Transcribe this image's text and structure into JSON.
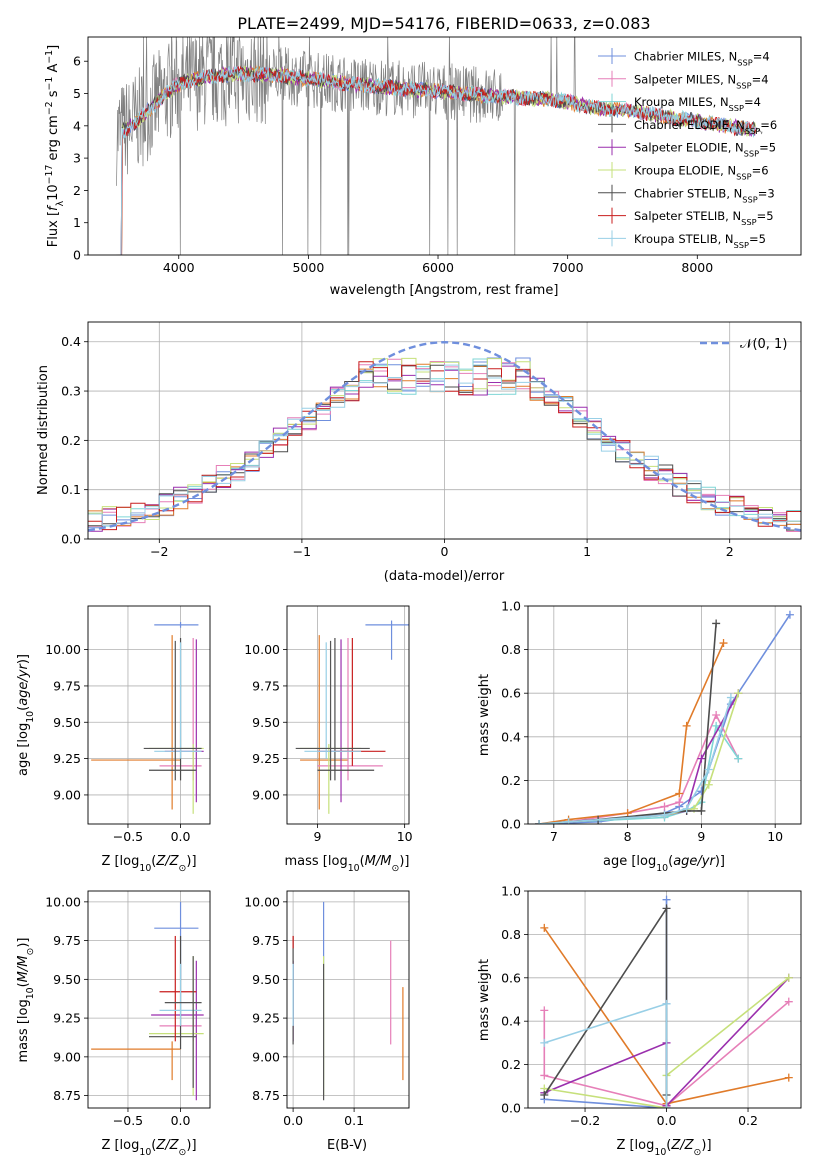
{
  "figure": {
    "title": "PLATE=2499, MJD=54176, FIBERID=0633, z=0.083"
  },
  "colors": {
    "Chabrier MILES": "#6f8fdd",
    "Salpeter MILES": "#e67fb8",
    "Kroupa MILES": "#7fd6d6",
    "Chabrier ELODIE": "#555555",
    "Salpeter ELODIE": "#9a2fad",
    "Kroupa ELODIE": "#c6e07b",
    "Chabrier STELIB": "#4d4d4d",
    "Salpeter STELIB": "#c81e1e",
    "Kroupa STELIB": "#98cfe6",
    "orange": "#e07b2a",
    "data": "#808080"
  },
  "chart_data": [
    {
      "id": "spectrum",
      "type": "line",
      "xlabel": "wavelength [Angstrom, rest frame]",
      "ylabel": "Flux [f_λ10^-17 erg cm^-2 s^-1 A^-1]",
      "xlim": [
        3300,
        8800
      ],
      "ylim": [
        0,
        6.75
      ],
      "xticks": [
        4000,
        5000,
        6000,
        7000,
        8000
      ],
      "yticks": [
        0,
        1,
        2,
        3,
        4,
        5,
        6
      ],
      "grid": false,
      "legend_position": "right",
      "legend": [
        {
          "label": "Chabrier MILES, N_SSP=4",
          "color": "#6f8fdd"
        },
        {
          "label": "Salpeter MILES, N_SSP=4",
          "color": "#e67fb8"
        },
        {
          "label": "Kroupa MILES, N_SSP=4",
          "color": "#7fd6d6"
        },
        {
          "label": "Chabrier ELODIE, N_SSP=6",
          "color": "#555555"
        },
        {
          "label": "Salpeter ELODIE, N_SSP=5",
          "color": "#9a2fad"
        },
        {
          "label": "Kroupa ELODIE, N_SSP=6",
          "color": "#c6e07b"
        },
        {
          "label": "Chabrier STELIB, N_SSP=3",
          "color": "#4d4d4d"
        },
        {
          "label": "Salpeter STELIB, N_SSP=5",
          "color": "#c81e1e"
        },
        {
          "label": "Kroupa STELIB, N_SSP=5",
          "color": "#98cfe6"
        }
      ],
      "continuum": {
        "x": [
          3500,
          3600,
          3750,
          3900,
          4000,
          4200,
          4400,
          4600,
          4800,
          5000,
          5300,
          5600,
          5900,
          6200,
          6500,
          6800,
          7000,
          7200,
          7400,
          7600,
          7800,
          8000,
          8200,
          8500
        ],
        "y": [
          3.7,
          3.9,
          4.4,
          5.0,
          5.3,
          5.5,
          5.6,
          5.6,
          5.55,
          5.45,
          5.3,
          5.2,
          5.1,
          5.0,
          4.9,
          4.85,
          4.75,
          4.55,
          4.5,
          4.4,
          4.25,
          4.15,
          4.0,
          3.85
        ]
      }
    },
    {
      "id": "residuals",
      "type": "line",
      "xlabel": "(data-model)/error",
      "ylabel": "Normed distribution",
      "xlim": [
        -2.5,
        2.5
      ],
      "ylim": [
        0,
        0.44
      ],
      "xticks": [
        -2,
        -1,
        0,
        1,
        2
      ],
      "yticks": [
        0.0,
        0.1,
        0.2,
        0.3,
        0.4
      ],
      "grid": true,
      "legend_position": "top-right",
      "legend": [
        {
          "label": "𝒩(0, 1)",
          "color": "#6f8fdd",
          "dashed": true
        }
      ],
      "bin_width": 0.1
    },
    {
      "id": "age-Z",
      "type": "scatter",
      "xlabel": "Z [log10(Z/Z⊙)]",
      "ylabel": "age [log10(age/yr)]",
      "xlim": [
        -0.88,
        0.28
      ],
      "ylim": [
        8.8,
        10.3
      ],
      "xticks": [
        -0.5,
        0.0
      ],
      "yticks": [
        9.0,
        9.25,
        9.5,
        9.75,
        10.0
      ],
      "grid": true
    },
    {
      "id": "age-mass",
      "type": "scatter",
      "xlabel": "mass [log10(M/M⊙)]",
      "ylabel": "",
      "xlim": [
        8.65,
        10.05
      ],
      "ylim": [
        8.8,
        10.3
      ],
      "xticks": [
        9,
        10
      ],
      "yticks": [
        9.0,
        9.25,
        9.5,
        9.75,
        10.0
      ],
      "grid": true
    },
    {
      "id": "weight-age",
      "type": "line",
      "xlabel": "age [log10(age/yr)]",
      "ylabel": "mass weight",
      "xlim": [
        6.65,
        10.35
      ],
      "ylim": [
        0,
        1.0
      ],
      "xticks": [
        7,
        8,
        9,
        10
      ],
      "yticks": [
        0.0,
        0.2,
        0.4,
        0.6,
        0.8,
        1.0
      ],
      "grid": true,
      "series": [
        {
          "color": "#6f8fdd",
          "x": [
            6.8,
            7.6,
            8.5,
            8.7,
            9.0,
            9.4,
            10.2
          ],
          "y": [
            0.0,
            0.01,
            0.05,
            0.08,
            0.15,
            0.55,
            0.96
          ]
        },
        {
          "color": "#e67fb8",
          "x": [
            6.8,
            7.2,
            8.0,
            8.5,
            8.7,
            9.2,
            9.5
          ],
          "y": [
            0.0,
            0.01,
            0.05,
            0.08,
            0.1,
            0.5,
            0.3
          ]
        },
        {
          "color": "#7fd6d6",
          "x": [
            6.8,
            7.2,
            8.5,
            8.8,
            9.0,
            9.2,
            9.5
          ],
          "y": [
            0.0,
            0.01,
            0.03,
            0.06,
            0.1,
            0.45,
            0.3
          ]
        },
        {
          "color": "#e07b2a",
          "x": [
            6.8,
            7.2,
            8.0,
            8.7,
            8.8,
            9.3
          ],
          "y": [
            0.0,
            0.02,
            0.05,
            0.14,
            0.45,
            0.83
          ]
        },
        {
          "color": "#9a2fad",
          "x": [
            6.8,
            7.2,
            8.5,
            8.8,
            9.0,
            9.5
          ],
          "y": [
            0.0,
            0.01,
            0.04,
            0.06,
            0.3,
            0.6
          ]
        },
        {
          "color": "#c6e07b",
          "x": [
            6.8,
            7.2,
            8.5,
            8.9,
            9.1,
            9.5
          ],
          "y": [
            0.0,
            0.01,
            0.04,
            0.07,
            0.18,
            0.6
          ]
        },
        {
          "color": "#4d4d4d",
          "x": [
            6.8,
            7.6,
            8.8,
            9.0,
            9.2
          ],
          "y": [
            0.0,
            0.02,
            0.06,
            0.06,
            0.92
          ]
        },
        {
          "color": "#98cfe6",
          "x": [
            6.8,
            7.2,
            8.5,
            8.8,
            9.1,
            9.4
          ],
          "y": [
            0.0,
            0.01,
            0.04,
            0.07,
            0.25,
            0.58
          ]
        }
      ]
    },
    {
      "id": "mass-Z",
      "type": "scatter",
      "xlabel": "Z [log10(Z/Z⊙)]",
      "ylabel": "mass [log10(M/M⊙)]",
      "xlim": [
        -0.88,
        0.28
      ],
      "ylim": [
        8.67,
        10.07
      ],
      "xticks": [
        -0.5,
        0.0
      ],
      "yticks": [
        8.75,
        9.0,
        9.25,
        9.5,
        9.75,
        10.0
      ],
      "grid": true
    },
    {
      "id": "mass-EBV",
      "type": "scatter",
      "xlabel": "E(B-V)",
      "ylabel": "",
      "xlim": [
        -0.01,
        0.19
      ],
      "ylim": [
        8.67,
        10.07
      ],
      "xticks": [
        0.0,
        0.1
      ],
      "yticks": [
        8.75,
        9.0,
        9.25,
        9.5,
        9.75,
        10.0
      ],
      "grid": true
    },
    {
      "id": "weight-Z",
      "type": "line",
      "xlabel": "Z [log10(Z/Z⊙)]",
      "ylabel": "mass weight",
      "xlim": [
        -0.34,
        0.33
      ],
      "ylim": [
        0,
        1.0
      ],
      "xticks": [
        -0.2,
        0.0,
        0.2
      ],
      "yticks": [
        0.0,
        0.2,
        0.4,
        0.6,
        0.8,
        1.0
      ],
      "grid": true,
      "series": [
        {
          "color": "#6f8fdd",
          "x": [
            -0.3,
            0.0,
            0.0,
            0.0
          ],
          "y": [
            0.04,
            0.0,
            0.48,
            0.96
          ]
        },
        {
          "color": "#e67fb8",
          "x": [
            -0.3,
            -0.3,
            0.0,
            0.3
          ],
          "y": [
            0.45,
            0.15,
            0.01,
            0.49
          ]
        },
        {
          "color": "#e07b2a",
          "x": [
            -0.3,
            0.0,
            0.3
          ],
          "y": [
            0.83,
            0.02,
            0.14
          ]
        },
        {
          "color": "#9a2fad",
          "x": [
            -0.3,
            0.0,
            0.0,
            0.3
          ],
          "y": [
            0.07,
            0.3,
            0.01,
            0.6
          ]
        },
        {
          "color": "#c6e07b",
          "x": [
            -0.3,
            0.0,
            0.0,
            0.3
          ],
          "y": [
            0.09,
            0.0,
            0.15,
            0.6
          ]
        },
        {
          "color": "#4d4d4d",
          "x": [
            -0.3,
            0.0,
            0.0
          ],
          "y": [
            0.06,
            0.92,
            0.06
          ]
        },
        {
          "color": "#98cfe6",
          "x": [
            -0.3,
            0.0,
            0.0
          ],
          "y": [
            0.3,
            0.48,
            0.0
          ]
        }
      ]
    }
  ]
}
